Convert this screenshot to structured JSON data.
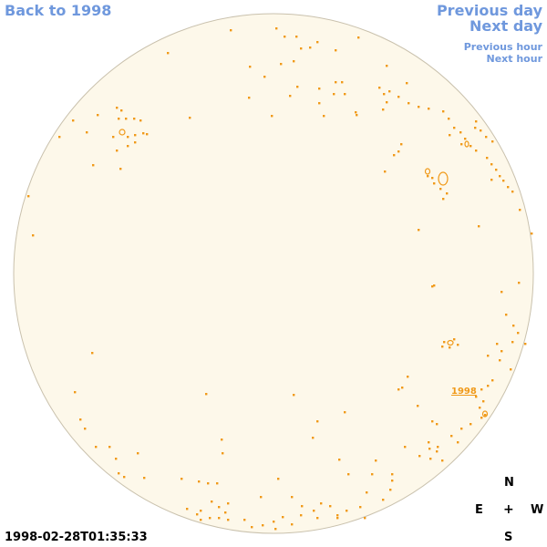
{
  "nav": {
    "back": "Back to 1998",
    "prev_day": "Previous day",
    "next_day": "Next day",
    "prev_hour": "Previous hour",
    "next_hour": "Next hour"
  },
  "region_label": "1998",
  "compass": {
    "n": "N",
    "e": "E",
    "center": "+",
    "w": "W",
    "s": "S"
  },
  "timestamp": "1998-02-28T01:35:33",
  "colors": {
    "disk_fill": "#fdf8ea",
    "disk_stroke": "#c9c1ad",
    "feature": "#f09a1a",
    "link": "#6f98dd"
  }
}
